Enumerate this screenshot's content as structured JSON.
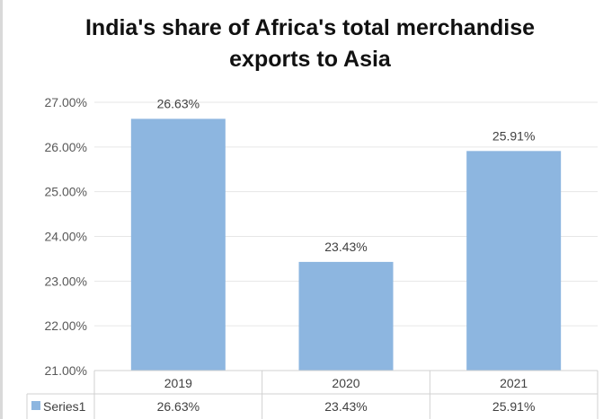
{
  "chart_data": {
    "type": "bar",
    "title": "India's share of Africa's total merchandise exports to Asia",
    "title_lines": [
      "India's share of Africa's total merchandise",
      "exports to Asia"
    ],
    "categories": [
      "2019",
      "2020",
      "2021"
    ],
    "series": [
      {
        "name": "Series1",
        "values": [
          26.63,
          23.43,
          25.91
        ],
        "labels": [
          "26.63%",
          "23.43%",
          "25.91%"
        ],
        "color": "#8db6e0"
      }
    ],
    "ylim": [
      21,
      27
    ],
    "yticks": [
      "21.00%",
      "22.00%",
      "23.00%",
      "24.00%",
      "25.00%",
      "26.00%",
      "27.00%"
    ],
    "grid": true,
    "legend": "data-table",
    "xlabel": "",
    "ylabel": ""
  }
}
